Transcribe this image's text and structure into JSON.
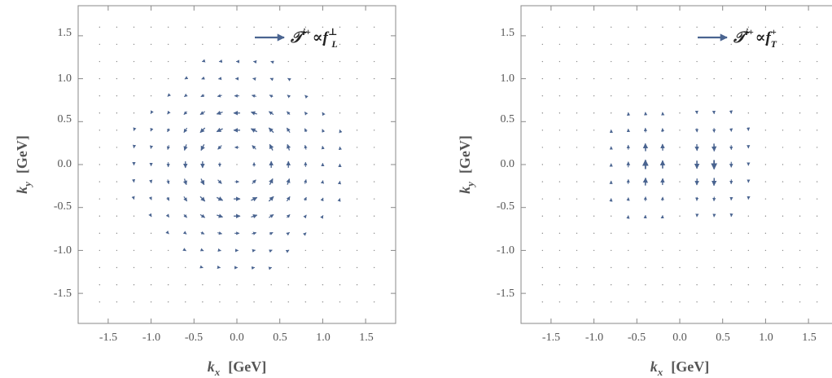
{
  "chart_data": [
    {
      "type": "vector-field",
      "title": "",
      "xlabel_var": "k",
      "xlabel_sub": "x",
      "xlabel_unit": "[GeV]",
      "ylabel_var": "k",
      "ylabel_sub": "y",
      "ylabel_unit": "[GeV]",
      "xlim": [
        -1.85,
        1.85
      ],
      "ylim": [
        -1.85,
        1.85
      ],
      "xticks": [
        "-1.5",
        "-1.0",
        "-0.5",
        "0.0",
        "0.5",
        "1.0",
        "1.5"
      ],
      "yticks": [
        "1.5",
        "1.0",
        "0.5",
        "0.0",
        "-0.5",
        "-1.0",
        "-1.5"
      ],
      "legend_main": "𝒯",
      "legend_sup": "i+",
      "legend_prop": "∝",
      "legend_f": "f",
      "legend_fsup": "⊥",
      "legend_fsub": "L",
      "legend_position": "top-right",
      "field": "rotational",
      "grid_spacing": 0.2,
      "arrow_color": "#4a6490"
    },
    {
      "type": "vector-field",
      "title": "",
      "xlabel_var": "k",
      "xlabel_sub": "x",
      "xlabel_unit": "[GeV]",
      "ylabel_var": "k",
      "ylabel_sub": "y",
      "ylabel_unit": "[GeV]",
      "xlim": [
        -1.85,
        1.85
      ],
      "ylim": [
        -1.85,
        1.85
      ],
      "xticks": [
        "-1.5",
        "-1.0",
        "-0.5",
        "0.0",
        "0.5",
        "1.0",
        "1.5"
      ],
      "yticks": [
        "1.5",
        "1.0",
        "0.5",
        "0.0",
        "-0.5",
        "-1.0",
        "-1.5"
      ],
      "legend_main": "𝒯",
      "legend_sup": "i+",
      "legend_prop": "∝",
      "legend_f": "f",
      "legend_fsup": "+",
      "legend_fsub": "T",
      "legend_position": "top-right",
      "field": "dipole-vertical",
      "grid_spacing": 0.2,
      "arrow_color": "#4a6490"
    }
  ]
}
